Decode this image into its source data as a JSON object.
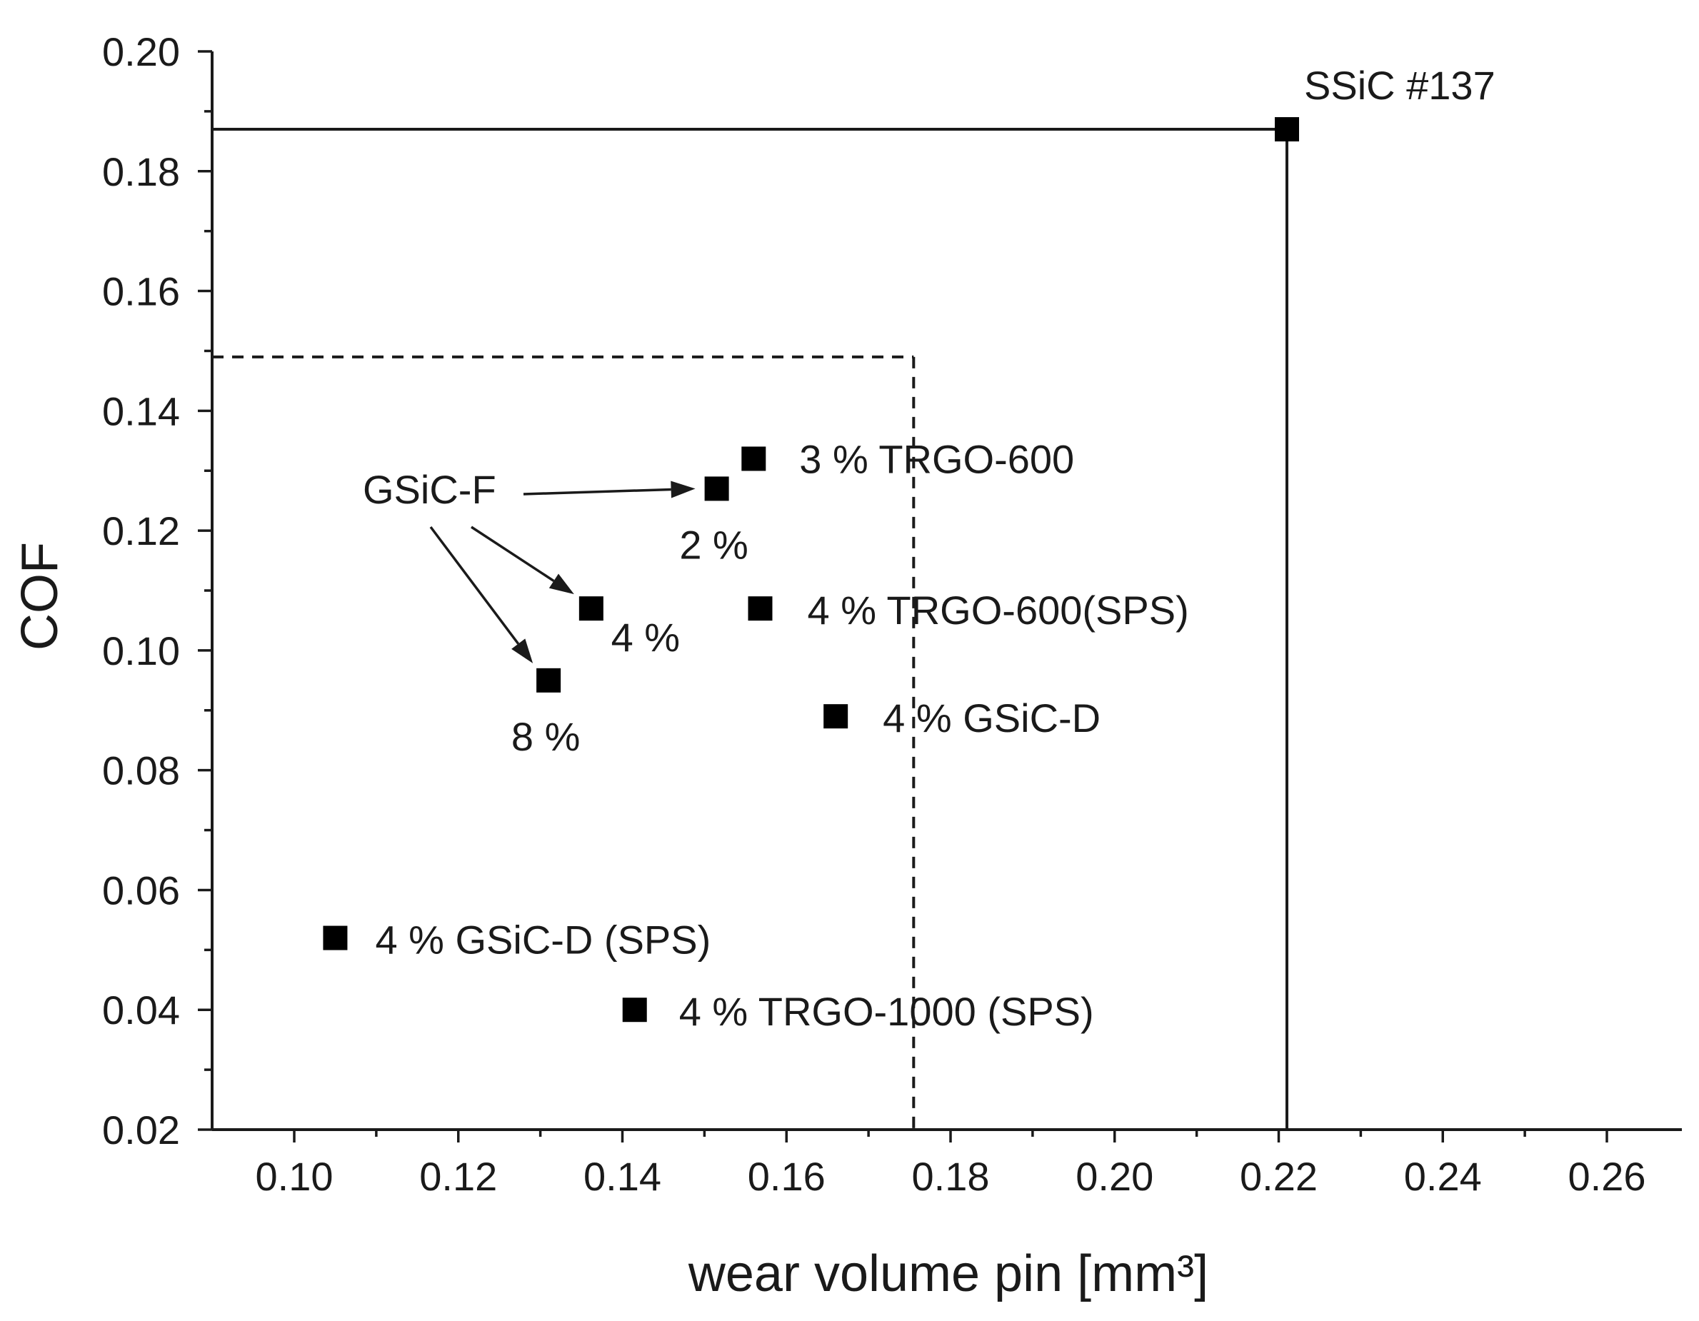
{
  "chart_data": {
    "type": "scatter",
    "title": "",
    "xlabel": "wear volume pin [mm³]",
    "ylabel": "COF",
    "xlim": [
      0.09,
      0.27
    ],
    "ylim": [
      0.02,
      0.2
    ],
    "xticks": [
      "0.10",
      "0.12",
      "0.14",
      "0.16",
      "0.18",
      "0.20",
      "0.22",
      "0.24",
      "0.26"
    ],
    "yticks": [
      "0.02",
      "0.04",
      "0.06",
      "0.08",
      "0.10",
      "0.12",
      "0.14",
      "0.16",
      "0.18",
      "0.20"
    ],
    "points": [
      {
        "id": "ssic-137",
        "x": 0.221,
        "y": 0.187,
        "label": "SSiC #137"
      },
      {
        "id": "trgo600-3",
        "x": 0.156,
        "y": 0.132,
        "label": "3 % TRGO-600"
      },
      {
        "id": "gsicf-2",
        "x": 0.1515,
        "y": 0.127,
        "label": "2 %"
      },
      {
        "id": "gsicf-4",
        "x": 0.1362,
        "y": 0.107,
        "label": "4 %"
      },
      {
        "id": "gsicf-8",
        "x": 0.131,
        "y": 0.095,
        "label": "8 %"
      },
      {
        "id": "trgo600-sps-4",
        "x": 0.1568,
        "y": 0.107,
        "label": "4 % TRGO-600(SPS)"
      },
      {
        "id": "gsicd-4",
        "x": 0.166,
        "y": 0.089,
        "label": "4 % GSiC-D"
      },
      {
        "id": "gsicd-sps-4",
        "x": 0.105,
        "y": 0.052,
        "label": "4 % GSiC-D (SPS)"
      },
      {
        "id": "trgo1000-sps-4",
        "x": 0.1415,
        "y": 0.04,
        "label": "4 % TRGO-1000 (SPS)"
      }
    ],
    "reference_lines": [
      {
        "id": "ssic-ref",
        "style": "solid",
        "x": 0.221,
        "y": 0.187
      },
      {
        "id": "target-ref",
        "style": "dashed",
        "x": 0.1755,
        "y": 0.149
      }
    ],
    "annotations": {
      "group_label": "GSiC-F",
      "arrow_targets": [
        "gsicf-2",
        "gsicf-4",
        "gsicf-8"
      ]
    },
    "grid": false,
    "legend": "none"
  }
}
